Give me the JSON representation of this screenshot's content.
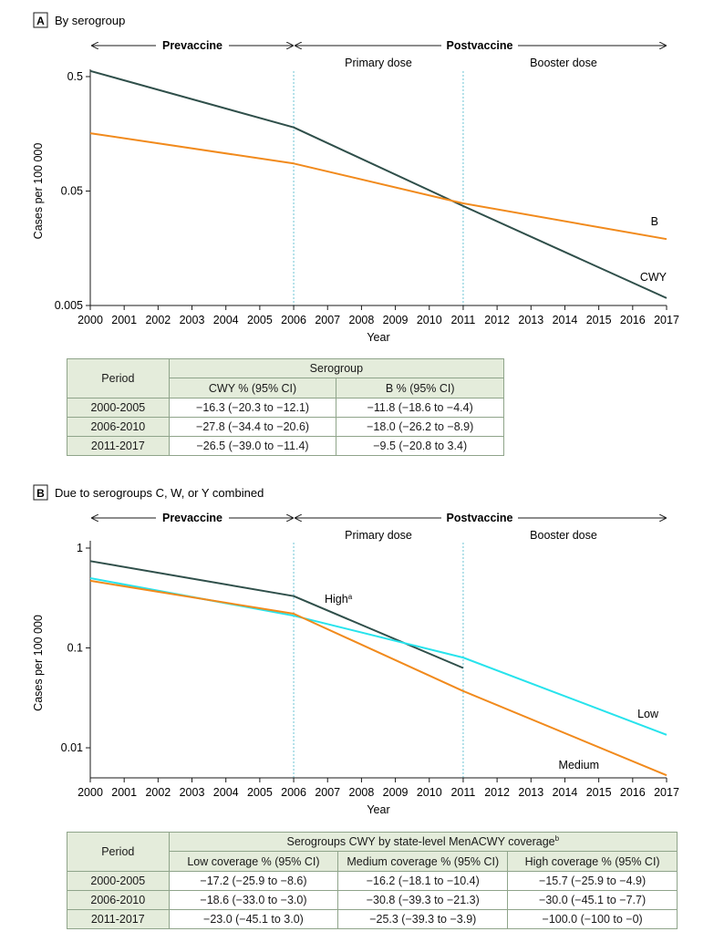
{
  "panel_a": {
    "badge": "A",
    "title": "By serogroup",
    "phase_prevaccine": "Prevaccine",
    "phase_postvaccine": "Postvaccine",
    "phase_primary": "Primary dose",
    "phase_booster": "Booster dose",
    "table": {
      "period_header": "Period",
      "group_header": "Serogroup",
      "columns": [
        "CWY % (95% CI)",
        "B % (95% CI)"
      ],
      "rows": [
        {
          "period": "2000-2005",
          "values": [
            "−16.3 (−20.3 to −12.1)",
            "−11.8 (−18.6 to −4.4)"
          ]
        },
        {
          "period": "2006-2010",
          "values": [
            "−27.8 (−34.4 to −20.6)",
            "−18.0 (−26.2 to −8.9)"
          ]
        },
        {
          "period": "2011-2017",
          "values": [
            "−26.5 (−39.0 to −11.4)",
            "−9.5 (−20.8 to 3.4)"
          ]
        }
      ]
    }
  },
  "panel_b": {
    "badge": "B",
    "title": "Due to serogroups C, W, or Y combined",
    "phase_prevaccine": "Prevaccine",
    "phase_postvaccine": "Postvaccine",
    "phase_primary": "Primary dose",
    "phase_booster": "Booster dose",
    "table": {
      "period_header": "Period",
      "group_header": "Serogroups CWY by state-level MenACWY coverage",
      "group_header_sup": "b",
      "columns": [
        "Low coverage % (95% CI)",
        "Medium coverage % (95% CI)",
        "High coverage % (95% CI)"
      ],
      "rows": [
        {
          "period": "2000-2005",
          "values": [
            "−17.2 (−25.9 to −8.6)",
            "−16.2 (−18.1 to −10.4)",
            "−15.7 (−25.9 to −4.9)"
          ]
        },
        {
          "period": "2006-2010",
          "values": [
            "−18.6 (−33.0 to −3.0)",
            "−30.8 (−39.3 to −21.3)",
            "−30.0 (−45.1 to −7.7)"
          ]
        },
        {
          "period": "2011-2017",
          "values": [
            "−23.0 (−45.1 to 3.0)",
            "−25.3 (−39.3 to −3.9)",
            "−100.0 (−100 to −0)"
          ]
        }
      ]
    }
  },
  "colors": {
    "dark": "#2f4f4a",
    "orange": "#f18a1c",
    "cyan": "#27e3ec",
    "vline": "#6cc5d4",
    "table_header": "#e4ecdb"
  },
  "chart_data": [
    {
      "type": "line",
      "title": "By serogroup",
      "xlabel": "Year",
      "ylabel": "Cases per 100 000",
      "yscale": "log",
      "ylim": [
        0.005,
        0.5
      ],
      "yticks": [
        "0.5",
        "0.05",
        "0.005"
      ],
      "xticks": [
        "2000",
        "2001",
        "2002",
        "2003",
        "2004",
        "2005",
        "2006",
        "2007",
        "2008",
        "2009",
        "2010",
        "2011",
        "2012",
        "2013",
        "2014",
        "2015",
        "2016",
        "2017"
      ],
      "xlim": [
        2000,
        2017
      ],
      "phase_lines": [
        2006,
        2011
      ],
      "series": [
        {
          "name": "CWY",
          "color": "dark",
          "x": [
            2000,
            2006,
            2011,
            2017
          ],
          "y": [
            0.56,
            0.18,
            0.037,
            0.0058
          ]
        },
        {
          "name": "B",
          "color": "orange",
          "x": [
            2000,
            2006,
            2011,
            2017
          ],
          "y": [
            0.16,
            0.087,
            0.039,
            0.019
          ]
        }
      ]
    },
    {
      "type": "line",
      "title": "Due to serogroups C, W, or Y combined",
      "xlabel": "Year",
      "ylabel": "Cases per 100 000",
      "yscale": "log",
      "ylim": [
        0.005,
        1
      ],
      "yticks": [
        "1",
        "0.1",
        "0.01"
      ],
      "xticks": [
        "2000",
        "2001",
        "2002",
        "2003",
        "2004",
        "2005",
        "2006",
        "2007",
        "2008",
        "2009",
        "2010",
        "2011",
        "2012",
        "2013",
        "2014",
        "2015",
        "2016",
        "2017"
      ],
      "xlim": [
        2000,
        2017
      ],
      "phase_lines": [
        2006,
        2011
      ],
      "series": [
        {
          "name": "High",
          "label_sup": "a",
          "color": "dark",
          "x": [
            2000,
            2006,
            2011
          ],
          "y": [
            0.74,
            0.33,
            0.063
          ]
        },
        {
          "name": "Low",
          "color": "cyan",
          "x": [
            2000,
            2006,
            2011,
            2017
          ],
          "y": [
            0.5,
            0.21,
            0.08,
            0.0135
          ]
        },
        {
          "name": "Medium",
          "color": "orange",
          "x": [
            2000,
            2006,
            2011,
            2017
          ],
          "y": [
            0.47,
            0.22,
            0.037,
            0.0053
          ]
        }
      ]
    }
  ]
}
